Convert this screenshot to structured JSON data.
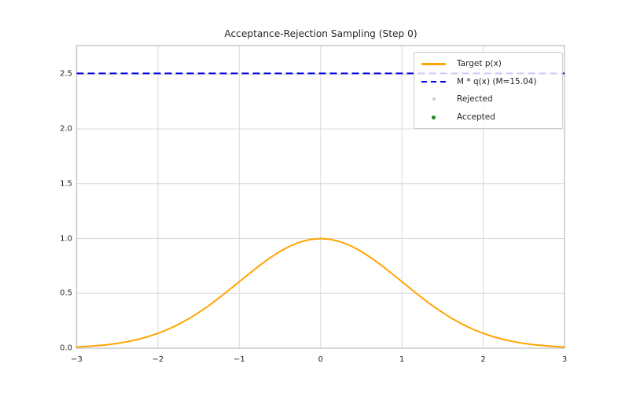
{
  "figure": {
    "title": "Acceptance-Rejection Sampling (Step 0)",
    "step": "0"
  },
  "colors": {
    "target_line": "#ffa500",
    "envelope_line": "#0202dd",
    "rejected_marker": "#c9c9c9",
    "accepted_marker": "#228b22",
    "grid": "#d9d9d9",
    "spine": "#c6c6c6",
    "text": "#262626",
    "legend_bg": "rgba(255,255,255,0.8)"
  },
  "legend": {
    "items": [
      {
        "label": "Target p(x)",
        "marker": "line",
        "color": "#ffa500",
        "size": 0
      },
      {
        "label": "M * q(x) (M=15.04)",
        "marker": "dashed-line",
        "color": "#0202dd",
        "size": 0
      },
      {
        "label": "Rejected",
        "marker": "dot",
        "color": "#c9c9c9",
        "size": 4
      },
      {
        "label": "Accepted",
        "marker": "dot",
        "color": "#228b22",
        "size": 5
      }
    ]
  },
  "chart_data": {
    "type": "line",
    "title": "Acceptance-Rejection Sampling (Step 0)",
    "xlabel": "",
    "ylabel": "",
    "xlim": [
      -3,
      3
    ],
    "ylim": [
      0,
      2.76
    ],
    "xticks": [
      -3,
      -2,
      -1,
      0,
      1,
      2,
      3
    ],
    "xticklabels": [
      "−3",
      "−2",
      "−1",
      "0",
      "1",
      "2",
      "3"
    ],
    "yticks": [
      0,
      0.5,
      1.0,
      1.5,
      2.0,
      2.5
    ],
    "yticklabels": [
      "0.0",
      "0.5",
      "1.0",
      "1.5",
      "2.0",
      "2.5"
    ],
    "grid": true,
    "legend_position": "upper right",
    "M": 15.04,
    "series": [
      {
        "name": "Target p(x)",
        "type": "line",
        "style": "solid",
        "color": "#ffa500",
        "width": 2,
        "points": [
          [
            -3.0,
            0.0111
          ],
          [
            -2.875,
            0.016
          ],
          [
            -2.75,
            0.0228
          ],
          [
            -2.625,
            0.0319
          ],
          [
            -2.5,
            0.0439
          ],
          [
            -2.375,
            0.0596
          ],
          [
            -2.25,
            0.0796
          ],
          [
            -2.125,
            0.1046
          ],
          [
            -2.0,
            0.1353
          ],
          [
            -1.875,
            0.1724
          ],
          [
            -1.75,
            0.2163
          ],
          [
            -1.625,
            0.267
          ],
          [
            -1.5,
            0.3247
          ],
          [
            -1.375,
            0.3886
          ],
          [
            -1.25,
            0.4578
          ],
          [
            -1.125,
            0.5311
          ],
          [
            -1.0,
            0.6065
          ],
          [
            -0.875,
            0.6819
          ],
          [
            -0.75,
            0.7548
          ],
          [
            -0.625,
            0.8226
          ],
          [
            -0.5,
            0.8825
          ],
          [
            -0.375,
            0.9321
          ],
          [
            -0.25,
            0.9692
          ],
          [
            -0.125,
            0.9922
          ],
          [
            0.0,
            1.0
          ],
          [
            0.125,
            0.9922
          ],
          [
            0.25,
            0.9692
          ],
          [
            0.375,
            0.9321
          ],
          [
            0.5,
            0.8825
          ],
          [
            0.625,
            0.8226
          ],
          [
            0.75,
            0.7548
          ],
          [
            0.875,
            0.6819
          ],
          [
            1.0,
            0.6065
          ],
          [
            1.125,
            0.5311
          ],
          [
            1.25,
            0.4578
          ],
          [
            1.375,
            0.3886
          ],
          [
            1.5,
            0.3247
          ],
          [
            1.625,
            0.267
          ],
          [
            1.75,
            0.2163
          ],
          [
            1.875,
            0.1724
          ],
          [
            2.0,
            0.1353
          ],
          [
            2.125,
            0.1046
          ],
          [
            2.25,
            0.0796
          ],
          [
            2.375,
            0.0596
          ],
          [
            2.5,
            0.0439
          ],
          [
            2.625,
            0.0319
          ],
          [
            2.75,
            0.0228
          ],
          [
            2.875,
            0.016
          ],
          [
            3.0,
            0.0111
          ]
        ]
      },
      {
        "name": "M * q(x) (M=15.04)",
        "type": "hline",
        "style": "dashed",
        "color": "#0202dd",
        "width": 2,
        "y": 2.5067
      },
      {
        "name": "Rejected",
        "type": "scatter",
        "color": "#c9c9c9",
        "points": []
      },
      {
        "name": "Accepted",
        "type": "scatter",
        "color": "#228b22",
        "points": []
      }
    ]
  }
}
